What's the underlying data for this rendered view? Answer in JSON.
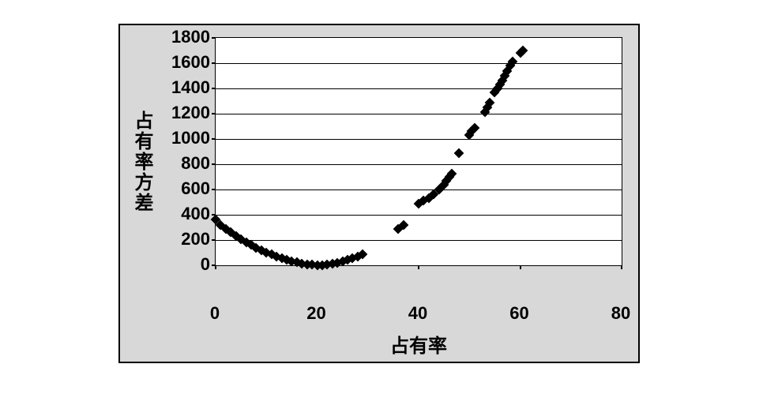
{
  "chart": {
    "type": "scatter",
    "xlabel": "占有率",
    "ylabel": "占有率方差",
    "xlim": [
      0,
      80
    ],
    "ylim": [
      0,
      1800
    ],
    "xticks": [
      0,
      20,
      40,
      60,
      80
    ],
    "yticks": [
      0,
      200,
      400,
      600,
      800,
      1000,
      1200,
      1400,
      1600,
      1800
    ],
    "background_color": "#d8d8d8",
    "plot_background": "#ffffff",
    "border_color": "#000000",
    "grid_color": "#000000",
    "point_color": "#000000",
    "point_size": 9,
    "label_fontsize": 24,
    "tick_fontsize": 22,
    "data": [
      {
        "x": 0,
        "y": 360
      },
      {
        "x": 1,
        "y": 320
      },
      {
        "x": 2,
        "y": 290
      },
      {
        "x": 3,
        "y": 260
      },
      {
        "x": 4,
        "y": 230
      },
      {
        "x": 5,
        "y": 205
      },
      {
        "x": 6,
        "y": 180
      },
      {
        "x": 7,
        "y": 160
      },
      {
        "x": 8,
        "y": 140
      },
      {
        "x": 9,
        "y": 120
      },
      {
        "x": 10,
        "y": 100
      },
      {
        "x": 11,
        "y": 85
      },
      {
        "x": 12,
        "y": 70
      },
      {
        "x": 13,
        "y": 55
      },
      {
        "x": 14,
        "y": 42
      },
      {
        "x": 15,
        "y": 32
      },
      {
        "x": 16,
        "y": 22
      },
      {
        "x": 17,
        "y": 15
      },
      {
        "x": 18,
        "y": 8
      },
      {
        "x": 19,
        "y": 4
      },
      {
        "x": 20,
        "y": 2
      },
      {
        "x": 21,
        "y": 3
      },
      {
        "x": 22,
        "y": 6
      },
      {
        "x": 23,
        "y": 12
      },
      {
        "x": 24,
        "y": 20
      },
      {
        "x": 25,
        "y": 30
      },
      {
        "x": 26,
        "y": 42
      },
      {
        "x": 27,
        "y": 55
      },
      {
        "x": 28,
        "y": 70
      },
      {
        "x": 29,
        "y": 90
      },
      {
        "x": 36,
        "y": 290
      },
      {
        "x": 37,
        "y": 320
      },
      {
        "x": 40,
        "y": 490
      },
      {
        "x": 41,
        "y": 510
      },
      {
        "x": 42,
        "y": 530
      },
      {
        "x": 43,
        "y": 560
      },
      {
        "x": 44,
        "y": 600
      },
      {
        "x": 45,
        "y": 640
      },
      {
        "x": 45.5,
        "y": 670
      },
      {
        "x": 46,
        "y": 700
      },
      {
        "x": 46.5,
        "y": 725
      },
      {
        "x": 48,
        "y": 890
      },
      {
        "x": 50,
        "y": 1030
      },
      {
        "x": 50.5,
        "y": 1060
      },
      {
        "x": 51,
        "y": 1090
      },
      {
        "x": 53,
        "y": 1210
      },
      {
        "x": 53.5,
        "y": 1250
      },
      {
        "x": 54,
        "y": 1290
      },
      {
        "x": 55,
        "y": 1370
      },
      {
        "x": 55.5,
        "y": 1400
      },
      {
        "x": 56,
        "y": 1430
      },
      {
        "x": 56.5,
        "y": 1460
      },
      {
        "x": 57,
        "y": 1500
      },
      {
        "x": 57.5,
        "y": 1540
      },
      {
        "x": 58,
        "y": 1580
      },
      {
        "x": 58.5,
        "y": 1610
      },
      {
        "x": 60,
        "y": 1680
      },
      {
        "x": 60.5,
        "y": 1700
      }
    ]
  }
}
